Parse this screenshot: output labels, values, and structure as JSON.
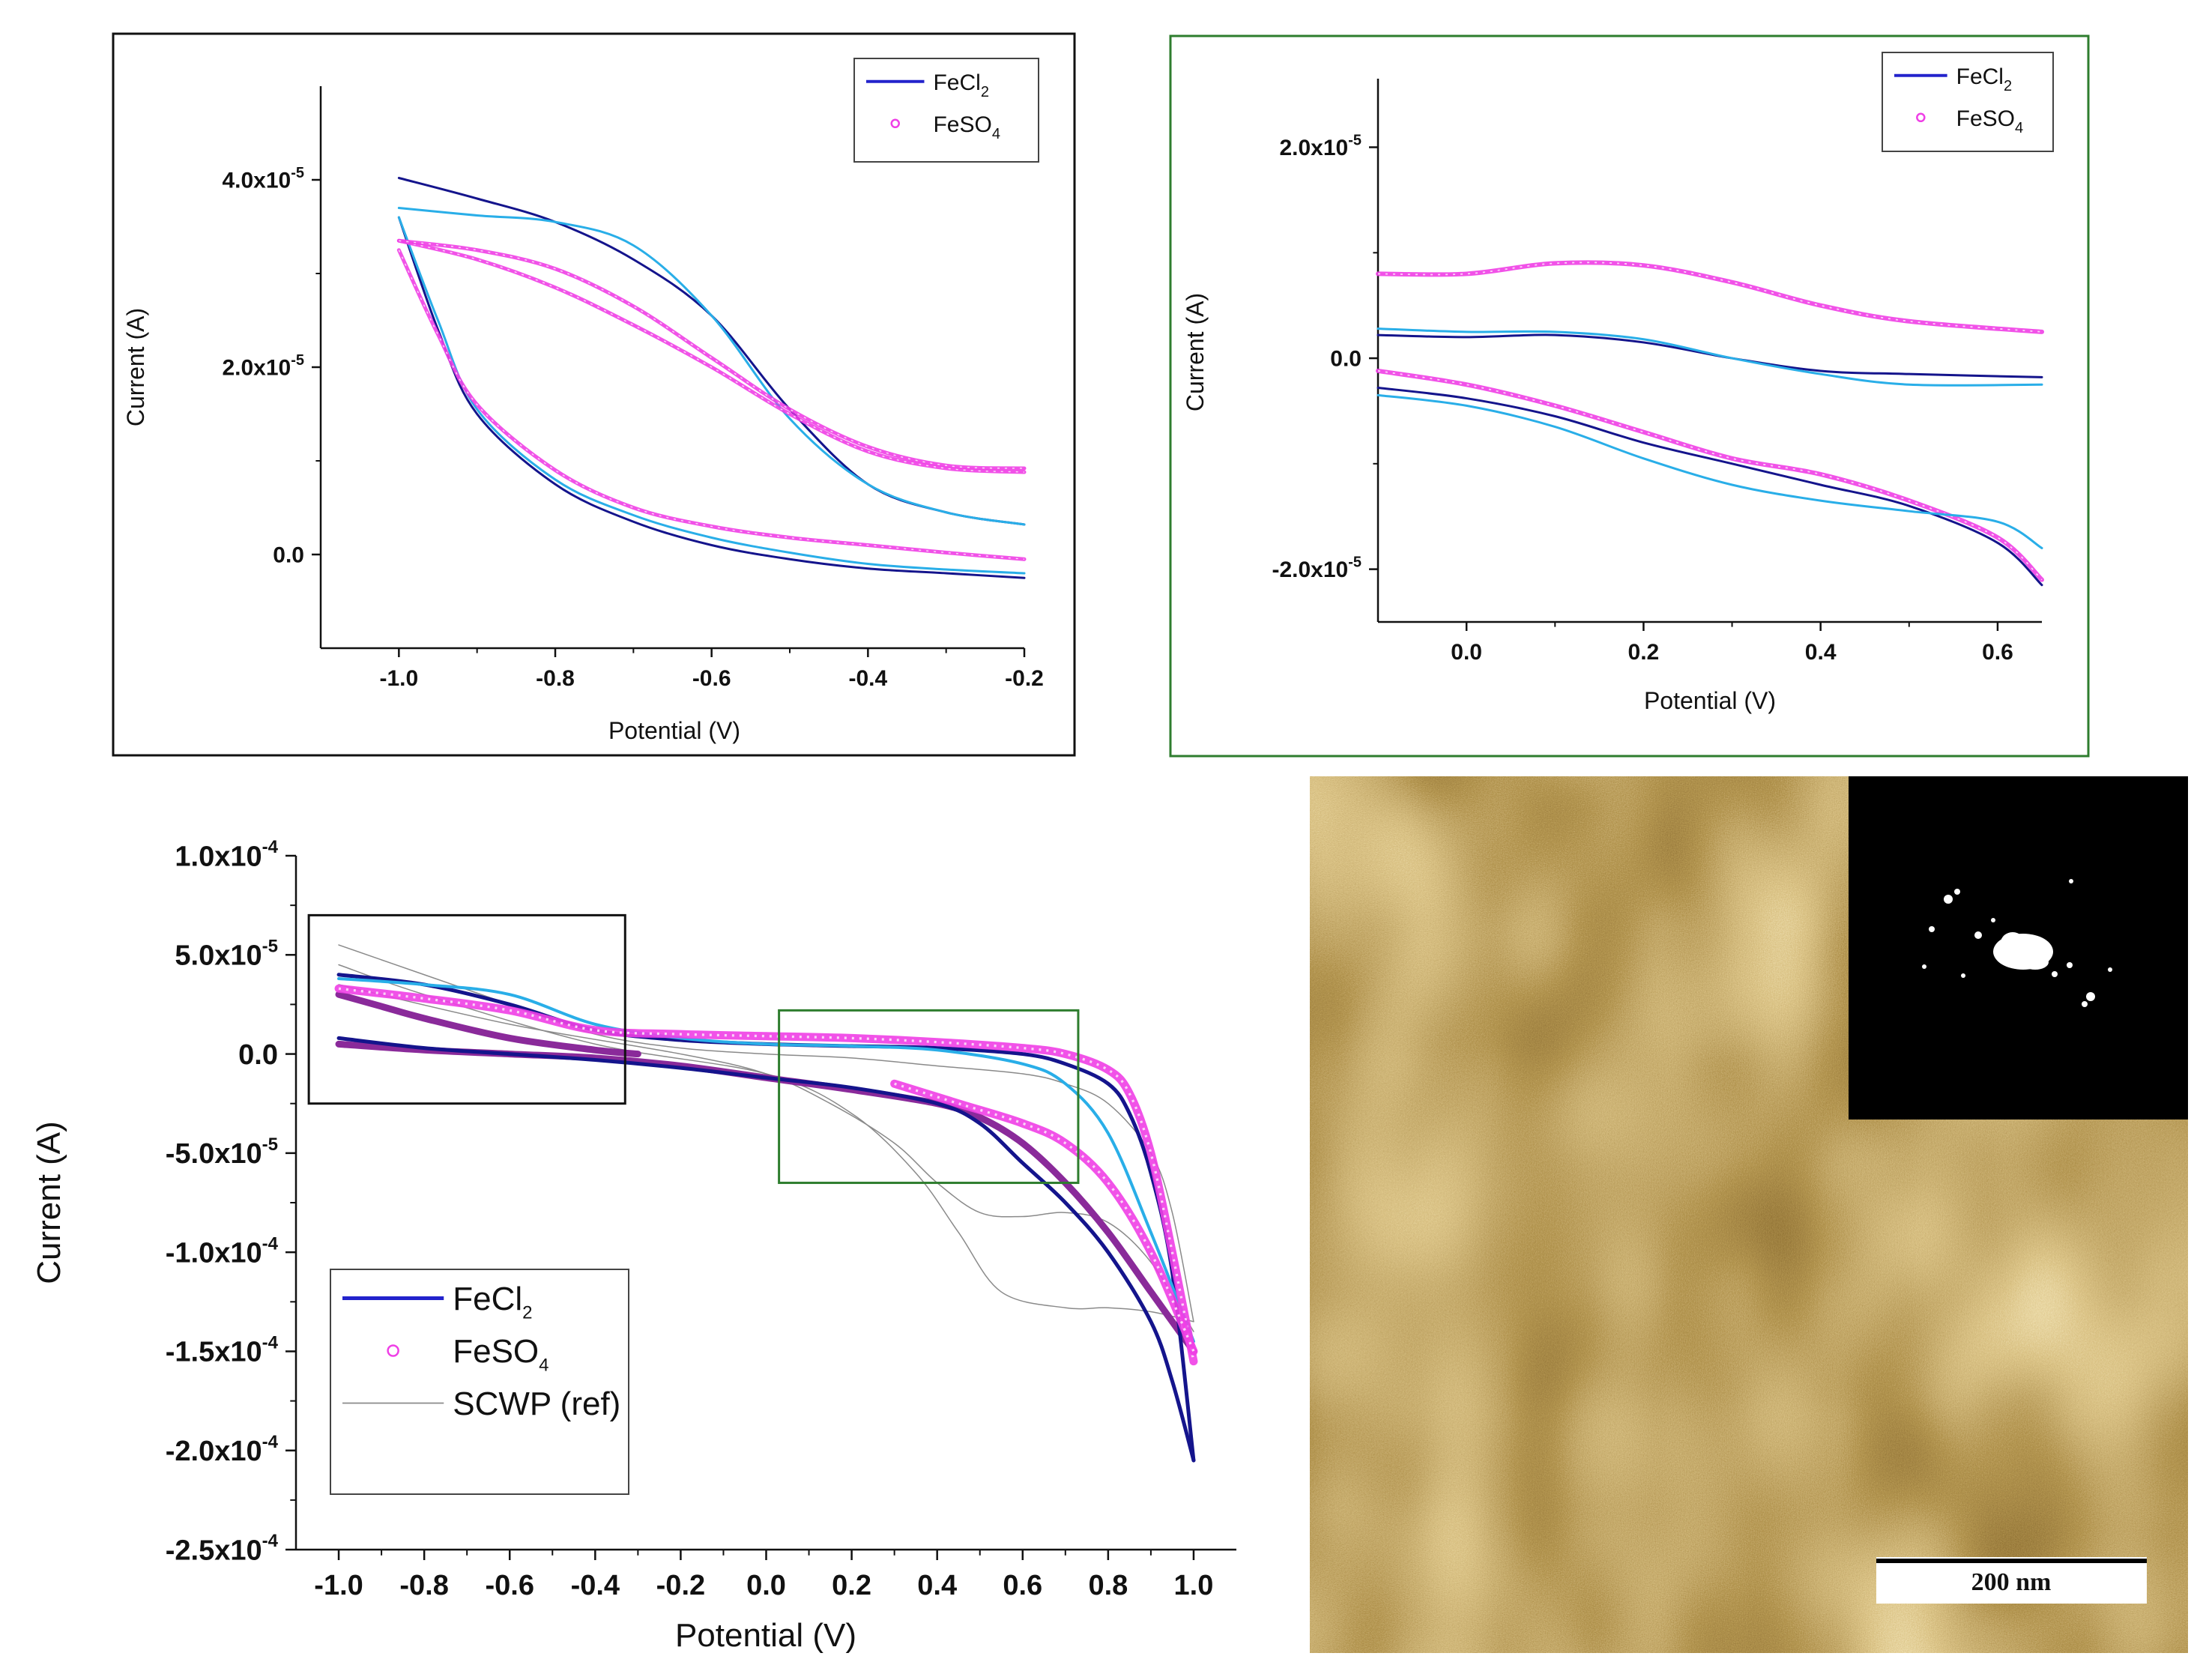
{
  "colors": {
    "fecl2_dark": "#14148c",
    "fecl2_light": "#29aee8",
    "feso4": "#ef3fe6",
    "feso4_dark": "#8a2a9a",
    "scwp": "#8a8a8a",
    "frame_a": "#111111",
    "frame_b": "#2e7d2e",
    "afm_dark": "#4a2c08",
    "afm_light": "#d8c27a"
  },
  "chart_data": [
    {
      "id": "panel_top_left",
      "type": "line",
      "xlabel": "Potential (V)",
      "ylabel": "Current (A)",
      "xlim": [
        -1.1,
        -0.2
      ],
      "ylim": [
        -1e-05,
        5e-05
      ],
      "xticks": [
        -1.0,
        -0.8,
        -0.6,
        -0.4,
        -0.2
      ],
      "xtick_labels": [
        "-1.0",
        "-0.8",
        "-0.6",
        "-0.4",
        "-0.2"
      ],
      "yticks": [
        0,
        2e-05,
        4e-05
      ],
      "ytick_base": [
        "0.0",
        "2.0x10",
        "4.0x10"
      ],
      "ytick_exp": [
        "",
        "-5",
        "-5"
      ],
      "legend": [
        {
          "base": "FeCl",
          "sub": "2",
          "style": "line"
        },
        {
          "base": "FeSO",
          "sub": "4",
          "style": "circle"
        }
      ],
      "series": [
        {
          "name": "FeCl2 forward",
          "color": "fecl2_dark",
          "width": 3,
          "x": [
            -1.0,
            -0.9,
            -0.8,
            -0.7,
            -0.6,
            -0.5,
            -0.4,
            -0.3,
            -0.2
          ],
          "y": [
            4.02e-05,
            3.8e-05,
            3.55e-05,
            3.15e-05,
            2.55e-05,
            1.55e-05,
            7.5e-06,
            4.5e-06,
            3.2e-06
          ]
        },
        {
          "name": "FeCl2 forward (2)",
          "color": "fecl2_light",
          "width": 3,
          "x": [
            -1.0,
            -0.9,
            -0.8,
            -0.7,
            -0.6,
            -0.5,
            -0.4,
            -0.3,
            -0.2
          ],
          "y": [
            3.7e-05,
            3.62e-05,
            3.55e-05,
            3.3e-05,
            2.55e-05,
            1.45e-05,
            7.5e-06,
            4.5e-06,
            3.2e-06
          ]
        },
        {
          "name": "FeCl2 reverse",
          "color": "fecl2_dark",
          "width": 3,
          "x": [
            -1.0,
            -0.95,
            -0.9,
            -0.8,
            -0.7,
            -0.6,
            -0.5,
            -0.4,
            -0.3,
            -0.2
          ],
          "y": [
            3.6e-05,
            2.4e-05,
            1.5e-05,
            7.5e-06,
            3.5e-06,
            1e-06,
            -5e-07,
            -1.5e-06,
            -2e-06,
            -2.5e-06
          ]
        },
        {
          "name": "FeCl2 reverse (2)",
          "color": "fecl2_light",
          "width": 3,
          "x": [
            -1.0,
            -0.95,
            -0.9,
            -0.8,
            -0.7,
            -0.6,
            -0.5,
            -0.4,
            -0.3,
            -0.2
          ],
          "y": [
            3.6e-05,
            2.5e-05,
            1.55e-05,
            8e-06,
            4.2e-06,
            1.8e-06,
            2e-07,
            -1e-06,
            -1.6e-06,
            -2e-06
          ]
        },
        {
          "name": "FeSO4 forward",
          "color": "feso4",
          "width": 5,
          "circles": true,
          "x": [
            -1.0,
            -0.9,
            -0.8,
            -0.7,
            -0.6,
            -0.5,
            -0.4,
            -0.3,
            -0.2
          ],
          "y": [
            3.35e-05,
            3.15e-05,
            2.85e-05,
            2.45e-05,
            2e-05,
            1.5e-05,
            1.1e-05,
            9.2e-06,
            8.8e-06
          ]
        },
        {
          "name": "FeSO4 forward (2)",
          "color": "feso4",
          "width": 5,
          "circles": true,
          "x": [
            -1.0,
            -0.9,
            -0.8,
            -0.7,
            -0.6,
            -0.5,
            -0.4,
            -0.3,
            -0.2
          ],
          "y": [
            3.35e-05,
            3.25e-05,
            3.05e-05,
            2.65e-05,
            2.1e-05,
            1.55e-05,
            1.15e-05,
            9.5e-06,
            9.2e-06
          ]
        },
        {
          "name": "FeSO4 reverse",
          "color": "feso4",
          "width": 5,
          "circles": true,
          "x": [
            -1.0,
            -0.95,
            -0.9,
            -0.8,
            -0.7,
            -0.6,
            -0.5,
            -0.4,
            -0.3,
            -0.2
          ],
          "y": [
            3.25e-05,
            2.35e-05,
            1.6e-05,
            9e-06,
            5e-06,
            3e-06,
            1.8e-06,
            1e-06,
            2e-07,
            -5e-07
          ]
        }
      ]
    },
    {
      "id": "panel_top_right",
      "type": "line",
      "xlabel": "Potential (V)",
      "ylabel": "Current (A)",
      "xlim": [
        -0.1,
        0.65
      ],
      "ylim": [
        -2.5e-05,
        2.65e-05
      ],
      "xticks": [
        0.0,
        0.2,
        0.4,
        0.6
      ],
      "xtick_labels": [
        "0.0",
        "0.2",
        "0.4",
        "0.6"
      ],
      "yticks": [
        -2e-05,
        0,
        2e-05
      ],
      "ytick_base": [
        "-2.0x10",
        "0.0",
        "2.0x10"
      ],
      "ytick_exp": [
        "-5",
        "",
        "-5"
      ],
      "legend": [
        {
          "base": "FeCl",
          "sub": "2",
          "style": "line"
        },
        {
          "base": "FeSO",
          "sub": "4",
          "style": "circle"
        }
      ],
      "series": [
        {
          "name": "FeSO4 upper",
          "color": "feso4",
          "width": 6,
          "circles": true,
          "x": [
            -0.1,
            0.0,
            0.1,
            0.2,
            0.3,
            0.4,
            0.5,
            0.65
          ],
          "y": [
            8e-06,
            8e-06,
            9e-06,
            8.8e-06,
            7.2e-06,
            5e-06,
            3.5e-06,
            2.5e-06
          ]
        },
        {
          "name": "FeCl2 upper",
          "color": "fecl2_dark",
          "width": 3,
          "x": [
            -0.1,
            0.0,
            0.1,
            0.2,
            0.3,
            0.4,
            0.5,
            0.65
          ],
          "y": [
            2.2e-06,
            2e-06,
            2.2e-06,
            1.5e-06,
            0.0,
            -1.2e-06,
            -1.5e-06,
            -1.8e-06
          ]
        },
        {
          "name": "FeCl2 upper (2)",
          "color": "fecl2_light",
          "width": 3,
          "x": [
            -0.1,
            0.0,
            0.1,
            0.2,
            0.3,
            0.4,
            0.5,
            0.65
          ],
          "y": [
            2.8e-06,
            2.5e-06,
            2.5e-06,
            1.8e-06,
            0.0,
            -1.5e-06,
            -2.5e-06,
            -2.5e-06
          ]
        },
        {
          "name": "FeSO4 lower",
          "color": "feso4",
          "width": 6,
          "circles": true,
          "x": [
            -0.1,
            0.0,
            0.1,
            0.2,
            0.3,
            0.4,
            0.5,
            0.6,
            0.65
          ],
          "y": [
            -1.2e-06,
            -2.5e-06,
            -4.5e-06,
            -7e-06,
            -9.5e-06,
            -1.1e-05,
            -1.35e-05,
            -1.7e-05,
            -2.1e-05
          ]
        },
        {
          "name": "FeCl2 lower",
          "color": "fecl2_dark",
          "width": 3,
          "x": [
            -0.1,
            0.0,
            0.1,
            0.2,
            0.3,
            0.4,
            0.5,
            0.6,
            0.65
          ],
          "y": [
            -2.8e-06,
            -3.8e-06,
            -5.5e-06,
            -8e-06,
            -1e-05,
            -1.2e-05,
            -1.4e-05,
            -1.75e-05,
            -2.15e-05
          ]
        },
        {
          "name": "FeCl2 lower (2)",
          "color": "fecl2_light",
          "width": 3,
          "x": [
            -0.1,
            0.0,
            0.1,
            0.2,
            0.3,
            0.4,
            0.5,
            0.6,
            0.65
          ],
          "y": [
            -3.5e-06,
            -4.5e-06,
            -6.5e-06,
            -9.5e-06,
            -1.2e-05,
            -1.35e-05,
            -1.45e-05,
            -1.55e-05,
            -1.8e-05
          ]
        }
      ]
    },
    {
      "id": "panel_bottom_left",
      "type": "line",
      "xlabel": "Potential (V)",
      "ylabel": "Current (A)",
      "xlim": [
        -1.1,
        1.1
      ],
      "ylim": [
        -0.00025,
        0.0001
      ],
      "xticks": [
        -1.0,
        -0.8,
        -0.6,
        -0.4,
        -0.2,
        0.0,
        0.2,
        0.4,
        0.6,
        0.8,
        1.0
      ],
      "xtick_labels": [
        "-1.0",
        "-0.8",
        "-0.6",
        "-0.4",
        "-0.2",
        "0.0",
        "0.2",
        "0.4",
        "0.6",
        "0.8",
        "1.0"
      ],
      "yticks": [
        0.0001,
        5e-05,
        0,
        -5e-05,
        -0.0001,
        -0.00015,
        -0.0002,
        -0.00025
      ],
      "ytick_base": [
        "1.0x10",
        "5.0x10",
        "0.0",
        "-5.0x10",
        "-1.0x10",
        "-1.5x10",
        "-2.0x10",
        "-2.5x10"
      ],
      "ytick_exp": [
        "-4",
        "-5",
        "",
        "-5",
        "-4",
        "-4",
        "-4",
        "-4"
      ],
      "legend": [
        {
          "base": "FeCl",
          "sub": "2",
          "style": "line"
        },
        {
          "base": "FeSO",
          "sub": "4",
          "style": "circle"
        },
        {
          "base": "SCWP (ref)",
          "sub": "",
          "style": "thin"
        }
      ],
      "insets": [
        {
          "x0": -1.07,
          "x1": -0.33,
          "y0": 7e-05,
          "y1": -2.5e-05,
          "color": "frame_a"
        },
        {
          "x0": 0.03,
          "x1": 0.73,
          "y0": 2.2e-05,
          "y1": -6.5e-05,
          "color": "frame_b"
        }
      ],
      "series": [
        {
          "name": "SCWP upper",
          "color": "scwp",
          "width": 1.5,
          "x": [
            -1.0,
            -0.8,
            -0.6,
            -0.4,
            -0.2,
            0.0,
            0.2,
            0.4,
            0.6,
            0.7,
            0.8,
            0.9,
            0.95,
            1.0
          ],
          "y": [
            5.5e-05,
            4e-05,
            2.5e-05,
            1e-05,
            3e-06,
            0.0,
            -2e-06,
            -6e-06,
            -1e-05,
            -1.5e-05,
            -2.5e-05,
            -5e-05,
            -8e-05,
            -0.000135
          ]
        },
        {
          "name": "SCWP lower a",
          "color": "scwp",
          "width": 1.5,
          "x": [
            -1.0,
            -0.8,
            -0.4,
            0.0,
            0.2,
            0.35,
            0.45,
            0.55,
            0.7,
            0.8,
            0.9,
            1.0
          ],
          "y": [
            4.5e-05,
            3e-05,
            5e-06,
            -1e-05,
            -3e-05,
            -6e-05,
            -9e-05,
            -0.00012,
            -0.000128,
            -0.000128,
            -0.00013,
            -0.000135
          ]
        },
        {
          "name": "SCWP lower b",
          "color": "scwp",
          "width": 1.5,
          "x": [
            -1.0,
            -0.6,
            -0.2,
            0.0,
            0.15,
            0.3,
            0.4,
            0.5,
            0.6,
            0.7,
            0.8,
            0.9,
            1.0
          ],
          "y": [
            3.5e-05,
            1.5e-05,
            0.0,
            -1e-05,
            -2.5e-05,
            -4.5e-05,
            -6.5e-05,
            -8e-05,
            -8.2e-05,
            -8e-05,
            -8.5e-05,
            -0.000105,
            -0.00014
          ]
        },
        {
          "name": "FeSO4 dark lower",
          "color": "feso4_dark",
          "width": 9,
          "x": [
            -1.0,
            -0.8,
            -0.6,
            -0.4,
            -0.2,
            0.0,
            0.2,
            0.4,
            0.5,
            0.6,
            0.7,
            0.8,
            0.9,
            1.0
          ],
          "y": [
            5e-06,
            2e-06,
            0.0,
            -2e-06,
            -6e-06,
            -1.2e-05,
            -1.8e-05,
            -2.5e-05,
            -3.2e-05,
            -4.5e-05,
            -6.5e-05,
            -9e-05,
            -0.00012,
            -0.00015
          ]
        },
        {
          "name": "FeSO4 dark upper",
          "color": "feso4_dark",
          "width": 9,
          "x": [
            -1.0,
            -0.9,
            -0.8,
            -0.6,
            -0.4,
            -0.3
          ],
          "y": [
            3e-05,
            2.4e-05,
            1.8e-05,
            8e-06,
            2e-06,
            0.0
          ]
        },
        {
          "name": "FeCl2 dark",
          "color": "fecl2_dark",
          "width": 5,
          "x": [
            -1.0,
            -0.8,
            -0.6,
            -0.4,
            -0.2,
            0.0,
            0.2,
            0.4,
            0.5,
            0.6,
            0.7,
            0.8,
            0.9,
            0.95,
            1.0
          ],
          "y": [
            8e-06,
            3e-06,
            0.0,
            -3e-06,
            -7e-06,
            -1.2e-05,
            -1.7e-05,
            -2.5e-05,
            -3.5e-05,
            -5.5e-05,
            -7.5e-05,
            -0.0001,
            -0.000135,
            -0.000165,
            -0.000205
          ]
        },
        {
          "name": "FeCl2 dark upper",
          "color": "fecl2_dark",
          "width": 5,
          "x": [
            -1.0,
            -0.8,
            -0.6,
            -0.4,
            -0.2,
            0.0,
            0.2,
            0.4,
            0.6,
            0.7,
            0.8,
            0.85,
            0.9,
            0.95,
            1.0
          ],
          "y": [
            4e-05,
            3.5e-05,
            2.5e-05,
            1.2e-05,
            7e-06,
            5e-06,
            4e-06,
            3e-06,
            0.0,
            -5e-06,
            -1.5e-05,
            -3e-05,
            -6e-05,
            -0.00011,
            -0.000205
          ]
        },
        {
          "name": "FeCl2 light",
          "color": "fecl2_light",
          "width": 4,
          "x": [
            -1.0,
            -0.8,
            -0.6,
            -0.4,
            -0.2,
            0.0,
            0.2,
            0.4,
            0.6,
            0.7,
            0.8,
            0.9,
            1.0
          ],
          "y": [
            3.8e-05,
            3.5e-05,
            3e-05,
            1.5e-05,
            8e-06,
            5e-06,
            4e-06,
            2e-06,
            -5e-06,
            -1.5e-05,
            -4e-05,
            -9e-05,
            -0.000145
          ]
        },
        {
          "name": "FeSO4 upper",
          "color": "feso4",
          "width": 11,
          "circles": true,
          "x": [
            -1.0,
            -0.8,
            -0.6,
            -0.4,
            -0.2,
            0.0,
            0.2,
            0.4,
            0.6,
            0.7,
            0.8,
            0.85,
            0.9,
            0.95,
            1.0
          ],
          "y": [
            3.3e-05,
            2.8e-05,
            2.2e-05,
            1.2e-05,
            1e-05,
            9e-06,
            8e-06,
            6e-06,
            3e-06,
            0.0,
            -8e-06,
            -2e-05,
            -5e-05,
            -0.0001,
            -0.000155
          ]
        },
        {
          "name": "FeSO4 lower",
          "color": "feso4",
          "width": 11,
          "circles": true,
          "x": [
            0.3,
            0.45,
            0.6,
            0.7,
            0.8,
            0.9,
            1.0
          ],
          "y": [
            -1.5e-05,
            -2.5e-05,
            -3.5e-05,
            -4.5e-05,
            -6.5e-05,
            -0.0001,
            -0.00015
          ]
        }
      ]
    }
  ],
  "afm": {
    "scalebar_label": "200 nm"
  }
}
